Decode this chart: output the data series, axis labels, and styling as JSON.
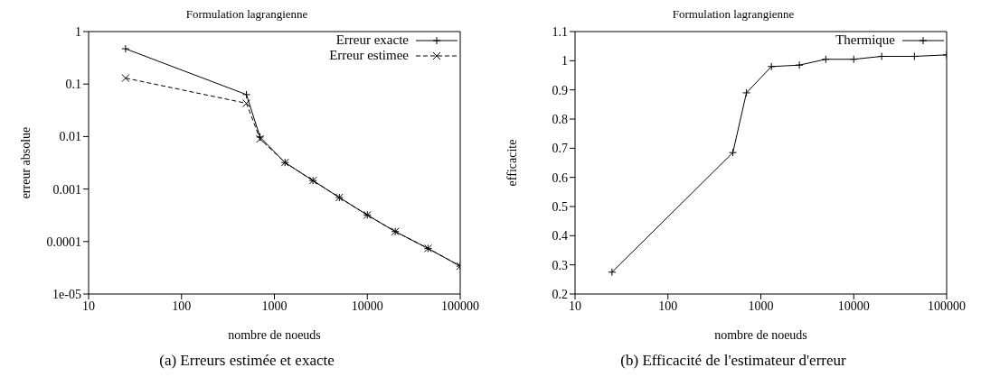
{
  "chart_data": [
    {
      "type": "line",
      "title": "Formulation lagrangienne",
      "xlabel": "nombre de noeuds",
      "ylabel": "erreur absolue",
      "log": "xy",
      "grid": false,
      "legend": "top right",
      "xlim": [
        10,
        100000
      ],
      "xticks": [
        10,
        100,
        1000,
        10000,
        100000
      ],
      "ylim": [
        1e-05,
        1
      ],
      "yticks": [
        1,
        0.1,
        0.01,
        0.001,
        0.0001,
        {
          "value": 1e-05,
          "label": "1e-05"
        }
      ],
      "x": [
        25,
        500,
        700,
        1300,
        2600,
        5000,
        10000,
        20000,
        45000,
        100000
      ],
      "series": [
        {
          "name": "Erreur exacte",
          "color": "#000000",
          "marker": "cross",
          "line_style": "solid",
          "values": [
            0.47,
            0.063,
            0.0098,
            0.0032,
            0.00145,
            0.00069,
            0.00032,
            0.000155,
            7.4e-05,
            3.4e-05
          ]
        },
        {
          "name": "Erreur estimee",
          "color": "#000000",
          "marker": "x",
          "line_style": "dashed",
          "values": [
            0.13,
            0.043,
            0.009,
            0.0032,
            0.00145,
            0.00069,
            0.00032,
            0.000155,
            7.4e-05,
            3.4e-05
          ]
        }
      ],
      "annotations": [
        "(a) Erreurs estimée et exacte"
      ]
    },
    {
      "type": "line",
      "title": "Formulation lagrangienne",
      "xlabel": "nombre de noeuds",
      "ylabel": "efficacite",
      "log": "x",
      "grid": false,
      "legend": "top right",
      "xlim": [
        10,
        100000
      ],
      "xticks": [
        10,
        100,
        1000,
        10000,
        100000
      ],
      "ylim": [
        0.2,
        1.1
      ],
      "yticks": [
        0.2,
        0.3,
        0.4,
        0.5,
        0.6,
        0.7,
        0.8,
        0.9,
        1,
        1.1
      ],
      "x": [
        25,
        500,
        700,
        1300,
        2600,
        5000,
        10000,
        20000,
        45000,
        100000
      ],
      "series": [
        {
          "name": "Thermique",
          "color": "#000000",
          "marker": "cross",
          "line_style": "solid",
          "values": [
            0.275,
            0.685,
            0.89,
            0.98,
            0.985,
            1.005,
            1.005,
            1.015,
            1.015,
            1.02
          ]
        }
      ],
      "annotations": [
        "(b) Efficacité de l'estimateur d'erreur"
      ]
    }
  ]
}
